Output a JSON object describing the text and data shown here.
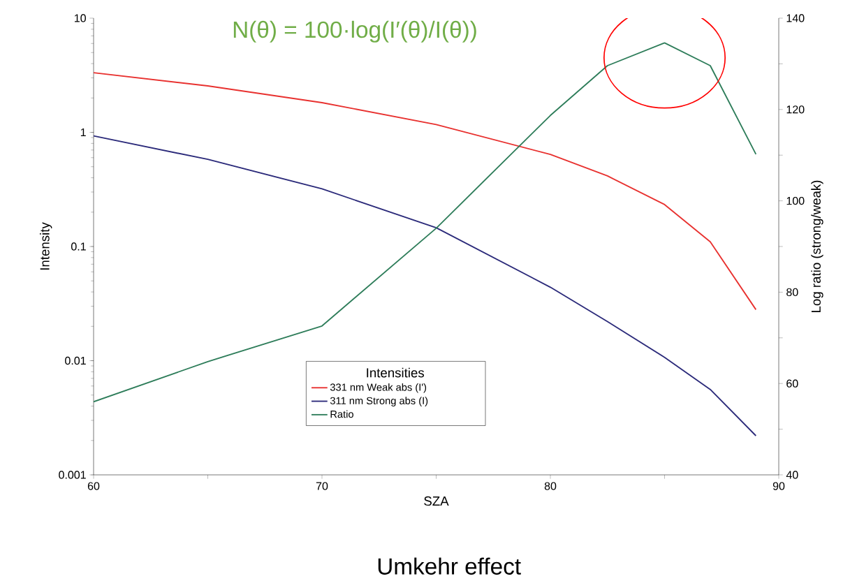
{
  "chart_data": {
    "type": "line",
    "title": "N(θ) = 100·log(I′(θ)/I(θ))",
    "xlabel": "SZA",
    "ylabel": "Intensity",
    "y2label": "Log ratio (strong/weak)",
    "legend_title": "Intensities",
    "annotations": [
      "Umkehr effect"
    ],
    "x": [
      60,
      65,
      70,
      75,
      80,
      82.5,
      85,
      87,
      89
    ],
    "series": [
      {
        "name": "331 nm Weak abs (I')",
        "color": "#e8312f",
        "values": [
          3.33,
          2.55,
          1.82,
          1.17,
          0.64,
          0.415,
          0.233,
          0.11,
          0.028
        ]
      },
      {
        "name": "311 nm Strong abs (I)",
        "color": "#2b2a7a",
        "values": [
          0.93,
          0.58,
          0.32,
          0.146,
          0.044,
          0.022,
          0.0107,
          0.0056,
          0.0022
        ]
      },
      {
        "name": "Ratio",
        "color": "#2e7d5a",
        "axis": "y2",
        "values": [
          56,
          64.8,
          72.6,
          94,
          118.7,
          129.6,
          134.6,
          129.6,
          110.2
        ]
      }
    ],
    "log": "y",
    "legend": "bottom",
    "xlim": [
      60,
      90
    ],
    "xticks": [
      60,
      {
        "value": 65,
        "label": null
      },
      70,
      {
        "value": 75,
        "label": null
      },
      80,
      {
        "value": 85,
        "label": null
      },
      90
    ],
    "ylim": [
      0.001,
      10
    ],
    "yticks": [
      0.001,
      0.01,
      0.1,
      1,
      10
    ],
    "y2lim": [
      40,
      140
    ],
    "y2ticks": [
      40,
      {
        "value": 50,
        "label": null
      },
      60,
      {
        "value": 70,
        "label": null
      },
      80,
      {
        "value": 90,
        "label": null
      },
      100,
      {
        "value": 110,
        "label": null
      },
      120,
      {
        "value": 130,
        "label": null
      },
      140
    ]
  }
}
